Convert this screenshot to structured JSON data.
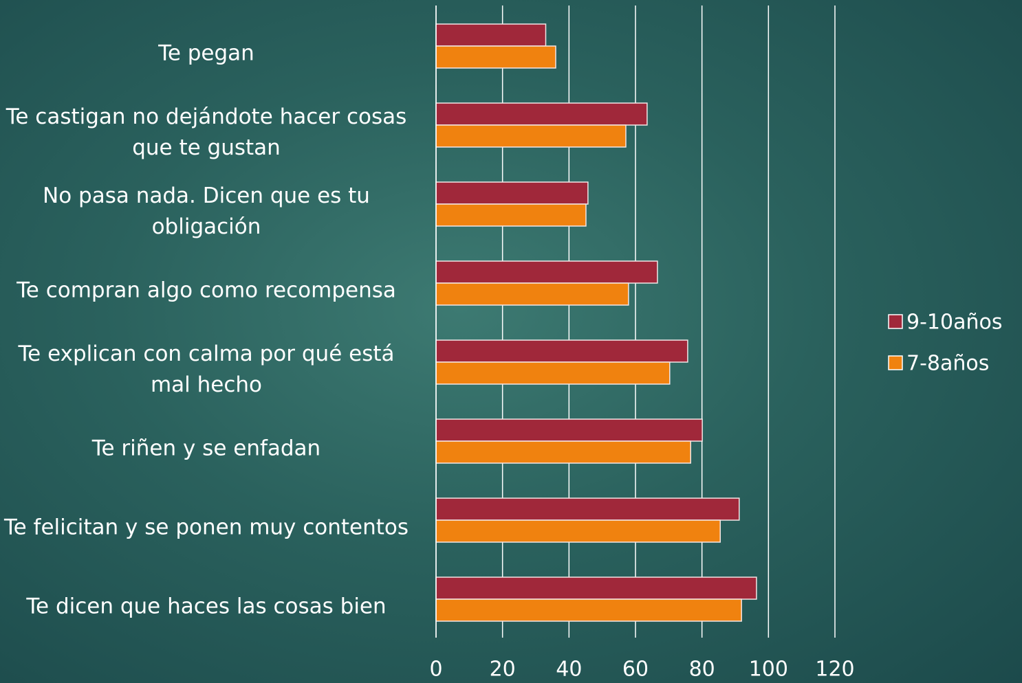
{
  "chart_data": {
    "type": "hbar",
    "categories": [
      "Te pegan",
      "Te castigan no dejándote hacer cosas que te gustan",
      "No pasa nada. Dicen que es tu obligación",
      "Te compran algo como recompensa",
      "Te explican con calma por qué está mal hecho",
      "Te riñen y se enfadan",
      "Te felicitan y se ponen muy contentos",
      "Te dicen que haces las cosas bien"
    ],
    "series": [
      {
        "name": "9-10años",
        "color": "#a0283a",
        "values": [
          33,
          63.5,
          45.7,
          66.6,
          75.7,
          80.1,
          91.2,
          96.4
        ]
      },
      {
        "name": "7-8años",
        "color": "#f0820f",
        "values": [
          36,
          57.1,
          45.1,
          57.9,
          70.3,
          76.6,
          85.5,
          91.9
        ]
      }
    ],
    "xlim": [
      0,
      120
    ],
    "xticks": [
      0,
      20,
      40,
      60,
      80,
      100,
      120
    ],
    "grid": true,
    "legend": "right"
  }
}
